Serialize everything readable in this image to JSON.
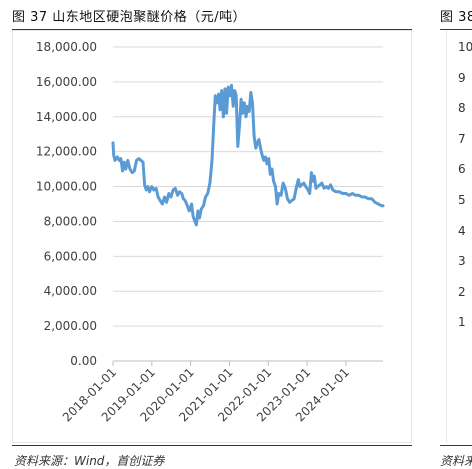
{
  "figure": {
    "title": "图 37  山东地区硬泡聚醚价格（元/吨）",
    "source": "资料来源：Wind，首创证券"
  },
  "next_figure": {
    "title_fragment": "图 38",
    "source_fragment": "资料来",
    "y_tick_fragments": [
      "10",
      "9",
      "8",
      "7",
      "6",
      "5",
      "4",
      "3",
      "2",
      "1"
    ]
  },
  "colors": {
    "rule": "#c00000",
    "line": "#5b9bd5",
    "grid": "#d9d9d9"
  },
  "chart_data": {
    "type": "line",
    "title": "",
    "xlabel": "",
    "ylabel": "",
    "ylim": [
      0,
      18000
    ],
    "xlim": [
      "2018-01-01",
      "2024-12-15"
    ],
    "grid": true,
    "legend": "none",
    "y_ticks": [
      "0.00",
      "2,000.00",
      "4,000.00",
      "6,000.00",
      "8,000.00",
      "10,000.00",
      "12,000.00",
      "14,000.00",
      "16,000.00",
      "18,000.00"
    ],
    "x_ticks": [
      "2018-01-01",
      "2019-01-01",
      "2020-01-01",
      "2021-01-01",
      "2022-01-01",
      "2023-01-01",
      "2024-01-01"
    ],
    "series": [
      {
        "points": [
          [
            "2018-01-01",
            12500
          ],
          [
            "2018-01-08",
            11800
          ],
          [
            "2018-01-20",
            11500
          ],
          [
            "2018-02-10",
            11700
          ],
          [
            "2018-03-01",
            11500
          ],
          [
            "2018-03-15",
            11600
          ],
          [
            "2018-04-01",
            10900
          ],
          [
            "2018-04-15",
            11400
          ],
          [
            "2018-05-01",
            11000
          ],
          [
            "2018-05-20",
            11500
          ],
          [
            "2018-06-10",
            11000
          ],
          [
            "2018-07-01",
            10800
          ],
          [
            "2018-07-20",
            10900
          ],
          [
            "2018-08-10",
            11500
          ],
          [
            "2018-09-01",
            11600
          ],
          [
            "2018-09-20",
            11500
          ],
          [
            "2018-10-10",
            11400
          ],
          [
            "2018-10-25",
            10100
          ],
          [
            "2018-11-10",
            9800
          ],
          [
            "2018-11-25",
            10000
          ],
          [
            "2018-12-10",
            9700
          ],
          [
            "2019-01-01",
            10000
          ],
          [
            "2019-01-20",
            9800
          ],
          [
            "2019-02-10",
            9900
          ],
          [
            "2019-03-01",
            9400
          ],
          [
            "2019-03-20",
            9200
          ],
          [
            "2019-04-10",
            9000
          ],
          [
            "2019-05-01",
            9400
          ],
          [
            "2019-05-20",
            9100
          ],
          [
            "2019-06-10",
            9600
          ],
          [
            "2019-07-01",
            9400
          ],
          [
            "2019-07-20",
            9800
          ],
          [
            "2019-08-10",
            9900
          ],
          [
            "2019-09-01",
            9500
          ],
          [
            "2019-09-20",
            9700
          ],
          [
            "2019-10-10",
            9600
          ],
          [
            "2019-10-25",
            9300
          ],
          [
            "2019-11-10",
            9200
          ],
          [
            "2019-12-01",
            8900
          ],
          [
            "2019-12-20",
            8600
          ],
          [
            "2020-01-10",
            9000
          ],
          [
            "2020-01-25",
            8300
          ],
          [
            "2020-02-10",
            8000
          ],
          [
            "2020-02-25",
            7800
          ],
          [
            "2020-03-10",
            8600
          ],
          [
            "2020-03-25",
            8200
          ],
          [
            "2020-04-10",
            8700
          ],
          [
            "2020-05-01",
            8900
          ],
          [
            "2020-05-20",
            9400
          ],
          [
            "2020-06-10",
            9600
          ],
          [
            "2020-07-01",
            10200
          ],
          [
            "2020-07-20",
            11500
          ],
          [
            "2020-08-05",
            13500
          ],
          [
            "2020-08-20",
            15200
          ],
          [
            "2020-09-05",
            14800
          ],
          [
            "2020-09-20",
            15300
          ],
          [
            "2020-10-05",
            14400
          ],
          [
            "2020-10-20",
            15500
          ],
          [
            "2020-11-05",
            14000
          ],
          [
            "2020-11-20",
            15600
          ],
          [
            "2020-12-05",
            14200
          ],
          [
            "2020-12-20",
            15700
          ],
          [
            "2021-01-05",
            15200
          ],
          [
            "2021-01-20",
            15800
          ],
          [
            "2021-02-05",
            14600
          ],
          [
            "2021-02-20",
            15500
          ],
          [
            "2021-03-05",
            15200
          ],
          [
            "2021-03-20",
            12300
          ],
          [
            "2021-04-05",
            13500
          ],
          [
            "2021-04-20",
            15000
          ],
          [
            "2021-05-05",
            14200
          ],
          [
            "2021-05-20",
            14800
          ],
          [
            "2021-06-05",
            14000
          ],
          [
            "2021-06-20",
            14600
          ],
          [
            "2021-07-05",
            14300
          ],
          [
            "2021-07-20",
            15400
          ],
          [
            "2021-08-05",
            14800
          ],
          [
            "2021-08-20",
            12900
          ],
          [
            "2021-09-05",
            12200
          ],
          [
            "2021-09-20",
            12500
          ],
          [
            "2021-10-05",
            12700
          ],
          [
            "2021-10-20",
            12200
          ],
          [
            "2021-11-05",
            11800
          ],
          [
            "2021-11-20",
            11500
          ],
          [
            "2021-12-05",
            11700
          ],
          [
            "2021-12-20",
            11300
          ],
          [
            "2022-01-05",
            11600
          ],
          [
            "2022-01-20",
            10700
          ],
          [
            "2022-02-05",
            11000
          ],
          [
            "2022-02-20",
            10300
          ],
          [
            "2022-03-10",
            10000
          ],
          [
            "2022-03-25",
            9000
          ],
          [
            "2022-04-10",
            9600
          ],
          [
            "2022-05-01",
            9500
          ],
          [
            "2022-05-20",
            10200
          ],
          [
            "2022-06-10",
            9900
          ],
          [
            "2022-07-01",
            9300
          ],
          [
            "2022-07-20",
            9100
          ],
          [
            "2022-08-10",
            9200
          ],
          [
            "2022-09-01",
            9300
          ],
          [
            "2022-09-20",
            9900
          ],
          [
            "2022-10-10",
            10400
          ],
          [
            "2022-10-25",
            10000
          ],
          [
            "2022-11-10",
            10100
          ],
          [
            "2022-12-01",
            10200
          ],
          [
            "2022-12-20",
            10000
          ],
          [
            "2023-01-10",
            9800
          ],
          [
            "2023-01-25",
            9600
          ],
          [
            "2023-02-10",
            10800
          ],
          [
            "2023-02-25",
            10300
          ],
          [
            "2023-03-10",
            10600
          ],
          [
            "2023-03-25",
            9900
          ],
          [
            "2023-04-10",
            10000
          ],
          [
            "2023-05-01",
            10100
          ],
          [
            "2023-05-20",
            10200
          ],
          [
            "2023-06-10",
            9900
          ],
          [
            "2023-07-01",
            10000
          ],
          [
            "2023-07-20",
            9900
          ],
          [
            "2023-08-10",
            10100
          ],
          [
            "2023-09-01",
            9800
          ],
          [
            "2023-10-01",
            9700
          ],
          [
            "2023-11-01",
            9700
          ],
          [
            "2023-12-01",
            9600
          ],
          [
            "2024-01-01",
            9600
          ],
          [
            "2024-02-01",
            9500
          ],
          [
            "2024-03-01",
            9600
          ],
          [
            "2024-04-01",
            9500
          ],
          [
            "2024-05-01",
            9500
          ],
          [
            "2024-06-01",
            9400
          ],
          [
            "2024-07-01",
            9400
          ],
          [
            "2024-08-01",
            9300
          ],
          [
            "2024-09-01",
            9300
          ],
          [
            "2024-10-01",
            9100
          ],
          [
            "2024-11-01",
            9000
          ],
          [
            "2024-12-01",
            8900
          ],
          [
            "2024-12-15",
            8900
          ]
        ]
      }
    ]
  }
}
